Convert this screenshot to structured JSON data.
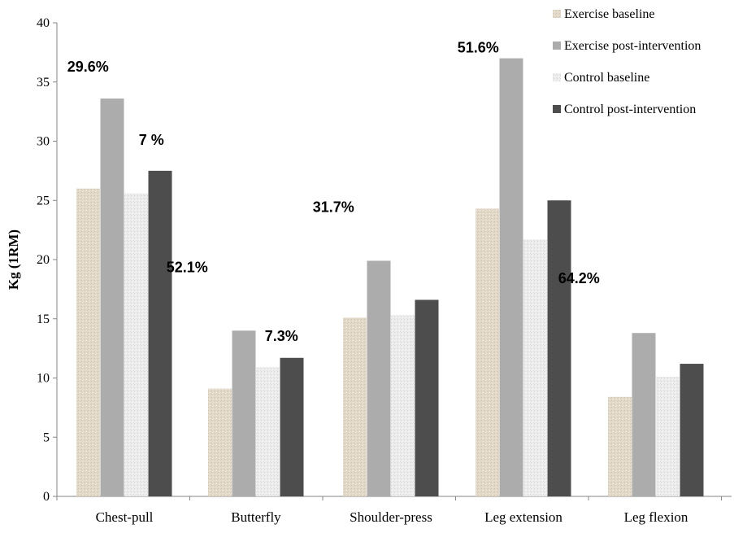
{
  "chart_data": {
    "type": "bar",
    "title": "",
    "xlabel": "",
    "ylabel": "Kg (1RM)",
    "ylim": [
      0,
      40
    ],
    "yticks": [
      0,
      5,
      10,
      15,
      20,
      25,
      30,
      35,
      40
    ],
    "grid": false,
    "legend_position": "top-right",
    "categories": [
      "Chest-pull",
      "Butterfly",
      "Shoulder-press",
      "Leg extension",
      "Leg flexion"
    ],
    "series": [
      {
        "name": "Exercise baseline",
        "color": "#e3d9c9",
        "values": [
          26.0,
          9.1,
          15.1,
          24.3,
          8.4
        ]
      },
      {
        "name": "Exercise post-intervention",
        "color": "#acacac",
        "values": [
          33.6,
          14.0,
          19.9,
          37.0,
          13.8
        ]
      },
      {
        "name": "Control baseline",
        "color": "#ececec",
        "values": [
          25.6,
          10.9,
          15.3,
          21.7,
          10.1
        ]
      },
      {
        "name": "Control post-intervention",
        "color": "#4d4d4d",
        "values": [
          27.5,
          11.7,
          16.6,
          25.0,
          11.2
        ]
      }
    ],
    "annotations": [
      {
        "text": "29.6%",
        "category": "Chest-pull",
        "series": "Exercise post-intervention"
      },
      {
        "text": "7 %",
        "category": "Chest-pull",
        "series": "Control post-intervention"
      },
      {
        "text": "52.1%",
        "category": "Butterfly",
        "series": "Exercise post-intervention"
      },
      {
        "text": "7.3%",
        "category": "Butterfly",
        "series": "Control post-intervention"
      },
      {
        "text": "31.7%",
        "category": "Shoulder-press",
        "series": "Exercise post-intervention"
      },
      {
        "text": "51.6%",
        "category": "Leg extension",
        "series": "Exercise post-intervention"
      },
      {
        "text": "64.2%",
        "category": "Leg flexion",
        "series": "Exercise post-intervention"
      }
    ]
  }
}
